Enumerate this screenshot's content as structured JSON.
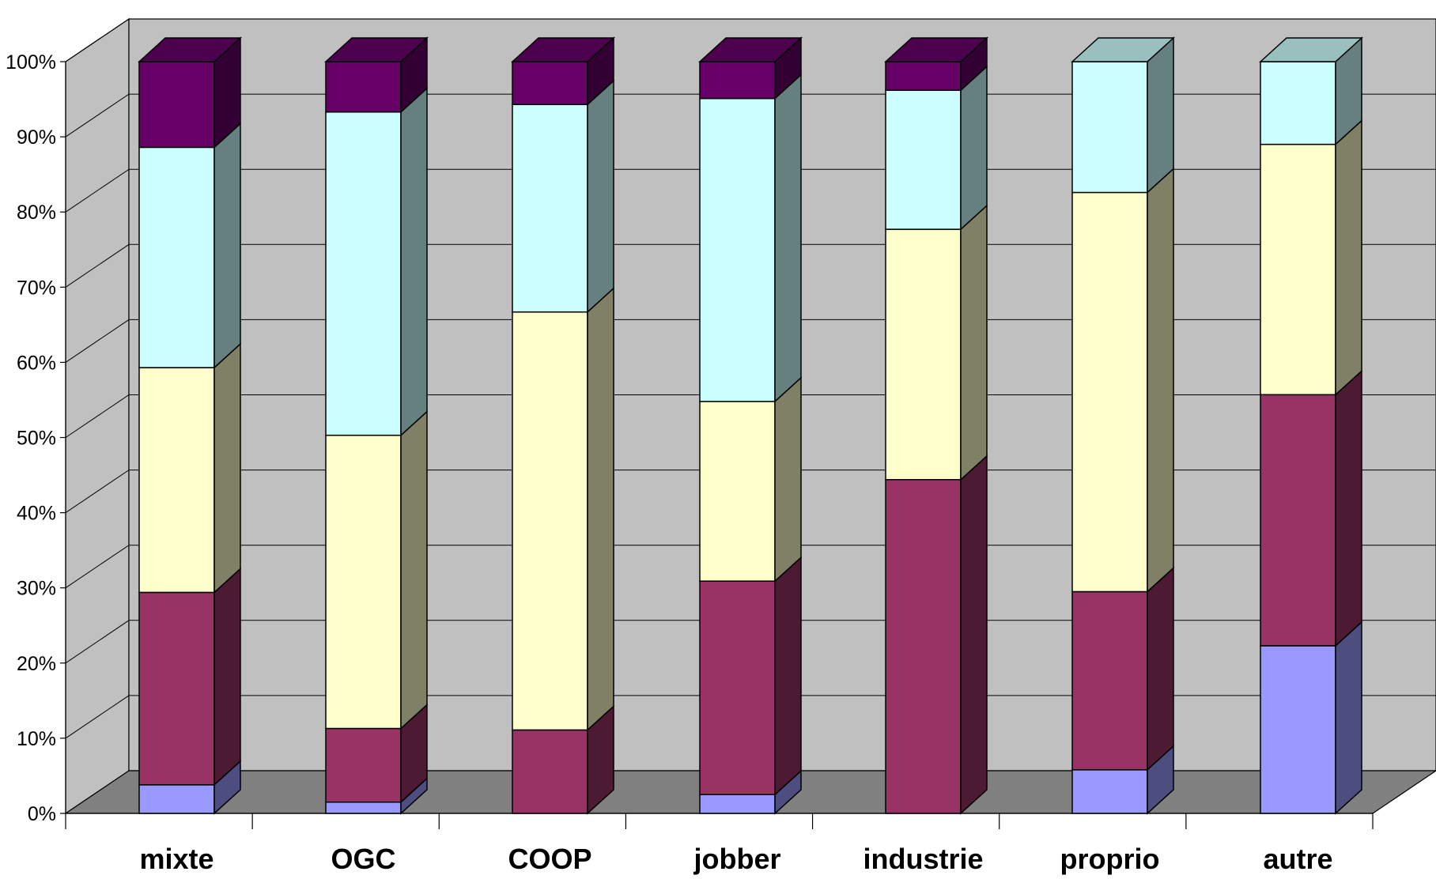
{
  "chart_data": {
    "type": "bar",
    "stacked": true,
    "percent_stacked": true,
    "three_d": true,
    "categories": [
      "mixte",
      "OGC",
      "COOP",
      "jobber",
      "industrie",
      "proprio",
      "autre"
    ],
    "series": [
      {
        "color": "#9999FF",
        "values": [
          3.8,
          1.5,
          0,
          2.5,
          0,
          5.8,
          22.3
        ]
      },
      {
        "color": "#993366",
        "values": [
          25.6,
          9.8,
          11.1,
          28.4,
          44.4,
          23.7,
          33.4
        ]
      },
      {
        "color": "#FFFFCC",
        "values": [
          29.9,
          39.0,
          55.6,
          23.9,
          33.3,
          53.1,
          33.3
        ]
      },
      {
        "color": "#CCFFFF",
        "values": [
          29.3,
          43.0,
          27.6,
          40.3,
          18.5,
          17.4,
          11.0
        ]
      },
      {
        "color": "#660066",
        "values": [
          11.4,
          6.7,
          5.7,
          4.9,
          3.8,
          0,
          0
        ]
      }
    ],
    "y_ticks": [
      "0%",
      "10%",
      "20%",
      "30%",
      "40%",
      "50%",
      "60%",
      "70%",
      "80%",
      "90%",
      "100%"
    ],
    "ylim": [
      0,
      100
    ],
    "grid": true,
    "legend": "none",
    "colors": {
      "wall": "#C0C0C0",
      "floor": "#808080"
    }
  }
}
